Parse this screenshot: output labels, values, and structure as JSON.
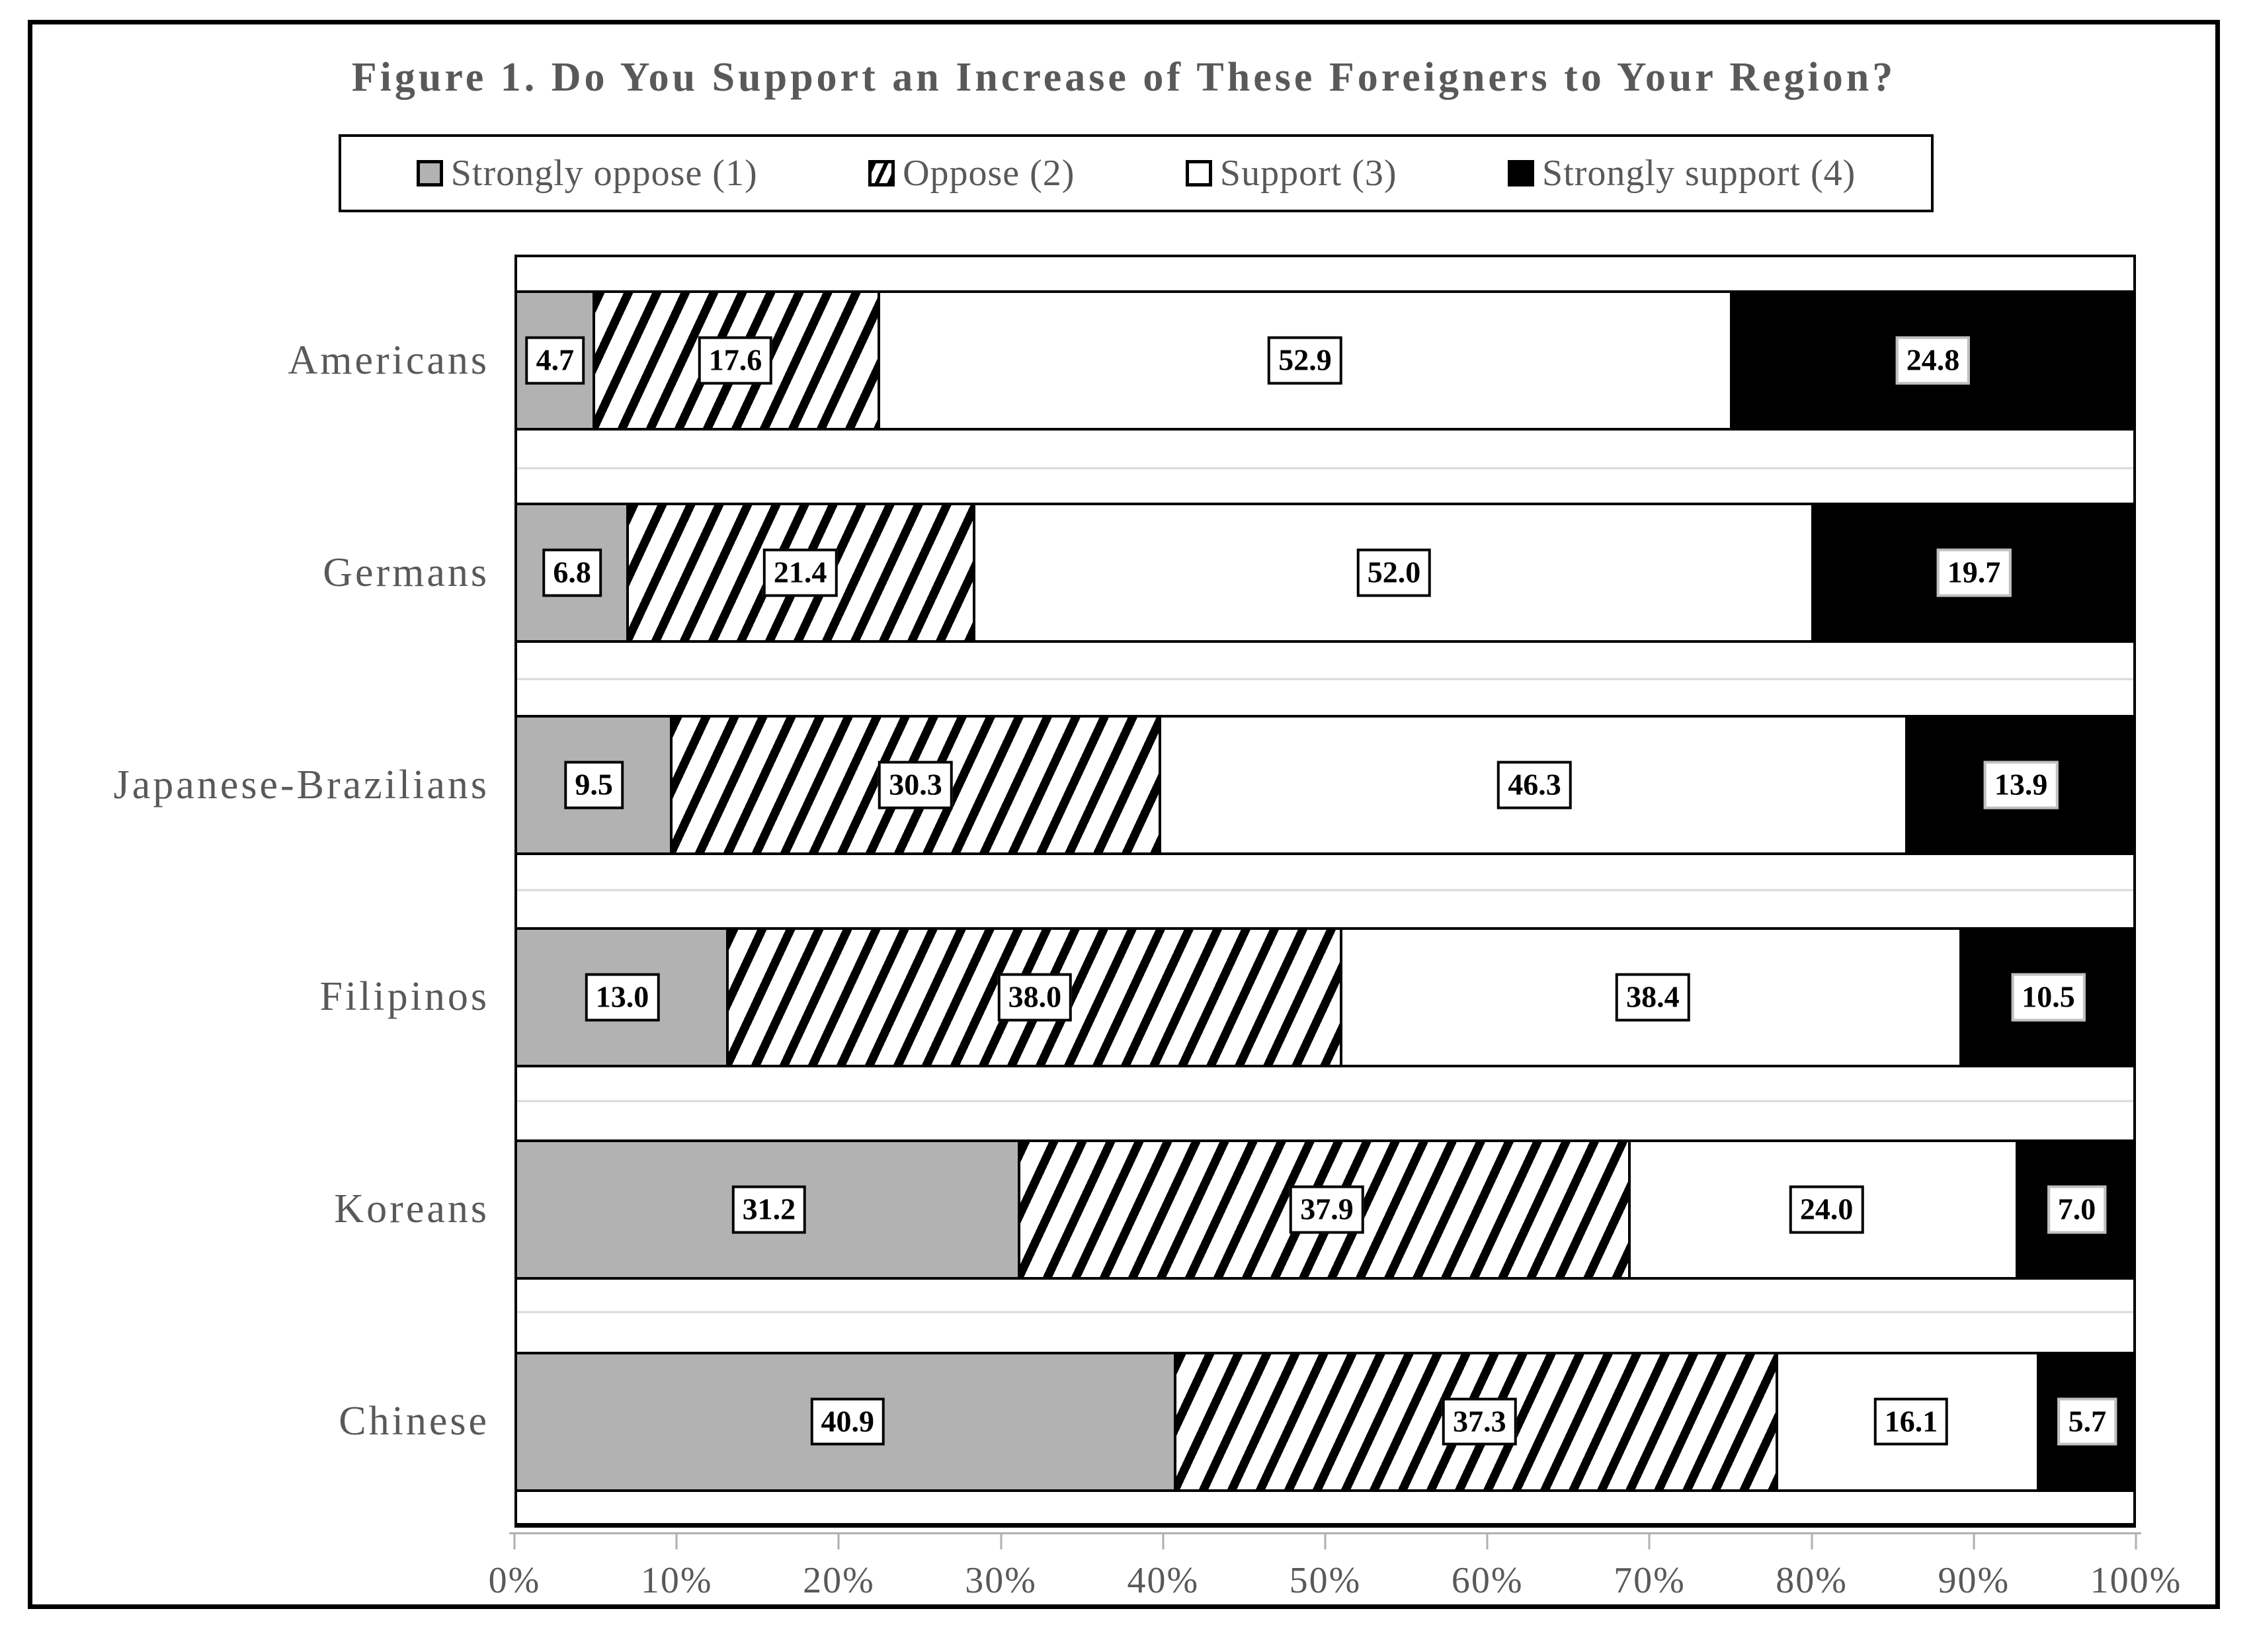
{
  "figure": {
    "title": "Figure 1. Do You Support an Increase of These Foreigners to Your Region?"
  },
  "legend": {
    "items": [
      {
        "label": "Strongly oppose (1)",
        "swatch": "gray"
      },
      {
        "label": "Oppose (2)",
        "swatch": "hatch"
      },
      {
        "label": "Support (3)",
        "swatch": "white"
      },
      {
        "label": "Strongly support (4)",
        "swatch": "black"
      }
    ]
  },
  "chart_data": {
    "type": "bar",
    "orientation": "horizontal-stacked",
    "title": "Figure 1. Do You Support an Increase of These Foreigners to Your Region?",
    "categories": [
      "Americans",
      "Germans",
      "Japanese-Brazilians",
      "Filipinos",
      "Koreans",
      "Chinese"
    ],
    "series": [
      {
        "name": "Strongly oppose (1)",
        "style": "gray",
        "values": [
          4.7,
          6.8,
          9.5,
          13.0,
          31.2,
          40.9
        ]
      },
      {
        "name": "Oppose (2)",
        "style": "hatch",
        "values": [
          17.6,
          21.4,
          30.3,
          38.0,
          37.9,
          37.3
        ]
      },
      {
        "name": "Support (3)",
        "style": "white",
        "values": [
          52.9,
          52.0,
          46.3,
          38.4,
          24.0,
          16.1
        ]
      },
      {
        "name": "Strongly support (4)",
        "style": "black",
        "values": [
          24.8,
          19.7,
          13.9,
          10.5,
          7.0,
          5.7
        ]
      }
    ],
    "value_labels": true,
    "xlabel": "",
    "ylabel": "",
    "x_axis": {
      "min": 0,
      "max": 100,
      "tick_step": 10,
      "ticks": [
        "0%",
        "10%",
        "20%",
        "30%",
        "40%",
        "50%",
        "60%",
        "70%",
        "80%",
        "90%",
        "100%"
      ]
    },
    "grid": "category-boundary-lines",
    "legend_position": "top"
  },
  "colors": {
    "text_gray": "#595959",
    "bar_gray": "#b2b2b2",
    "bar_black": "#000000",
    "bar_white": "#ffffff",
    "gridline": "#d9d9d9",
    "axis": "#b0b0b0",
    "frame_border": "#000000"
  }
}
